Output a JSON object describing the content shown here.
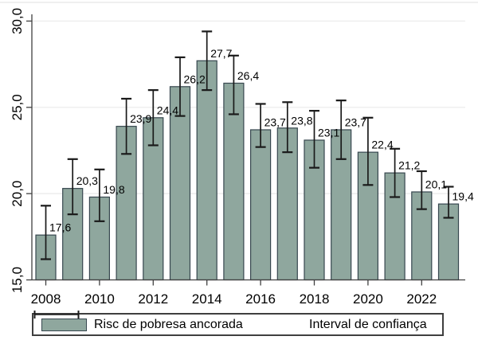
{
  "figure": {
    "background": "#ffffff",
    "top_border_color": "#e5e5e5"
  },
  "chart_data": {
    "type": "bar",
    "title": "",
    "xlabel": "",
    "ylabel": "",
    "categories": [
      2008,
      2009,
      2010,
      2011,
      2012,
      2013,
      2014,
      2015,
      2016,
      2017,
      2018,
      2019,
      2020,
      2021,
      2022,
      2023
    ],
    "series": [
      {
        "name": "Risc de pobresa ancorada",
        "values": [
          17.6,
          20.3,
          19.8,
          23.9,
          24.4,
          26.2,
          27.7,
          26.4,
          23.7,
          23.8,
          23.1,
          23.7,
          22.4,
          21.2,
          20.1,
          19.4
        ]
      }
    ],
    "value_labels": [
      "17,6",
      "20,3",
      "19,8",
      "23,9",
      "24,4",
      "26,2",
      "27,7",
      "26,4",
      "23,7",
      "23,8",
      "23,1",
      "23,7",
      "22,4",
      "21,2",
      "20,1",
      "19,4"
    ],
    "error_bars": {
      "name": "Interval de confiança",
      "low": [
        16.2,
        18.8,
        18.4,
        22.3,
        22.8,
        24.5,
        26.0,
        24.6,
        22.7,
        22.4,
        21.5,
        22.0,
        20.5,
        19.8,
        19.1,
        18.6
      ],
      "high": [
        19.3,
        22.0,
        21.4,
        25.5,
        26.0,
        27.9,
        29.4,
        28.0,
        25.2,
        25.3,
        24.8,
        25.4,
        24.4,
        22.6,
        21.3,
        20.4
      ]
    },
    "ylim": [
      15,
      30.5
    ],
    "yticks": {
      "values": [
        15,
        20,
        25,
        30
      ],
      "labels": [
        "15,0",
        "20,0",
        "25,0",
        "30,0"
      ]
    },
    "xticks": {
      "values": [
        2008,
        2010,
        2012,
        2014,
        2016,
        2018,
        2020,
        2022
      ],
      "labels": [
        "2008",
        "2010",
        "2012",
        "2014",
        "2016",
        "2018",
        "2020",
        "2022"
      ]
    },
    "grid": true,
    "legend_position": "bottom",
    "colors": {
      "bar_fill": "#8fa79e",
      "bar_outline": "#37474f",
      "error_bar": "#1a1a1a",
      "grid": "#eaeaea",
      "axis": "#404040",
      "text": "#000000"
    }
  },
  "legend": {
    "items": [
      {
        "icon": "bar-swatch",
        "label": "Risc de pobresa ancorada"
      },
      {
        "icon": "error-bar",
        "label": "Interval de confiança"
      }
    ]
  }
}
